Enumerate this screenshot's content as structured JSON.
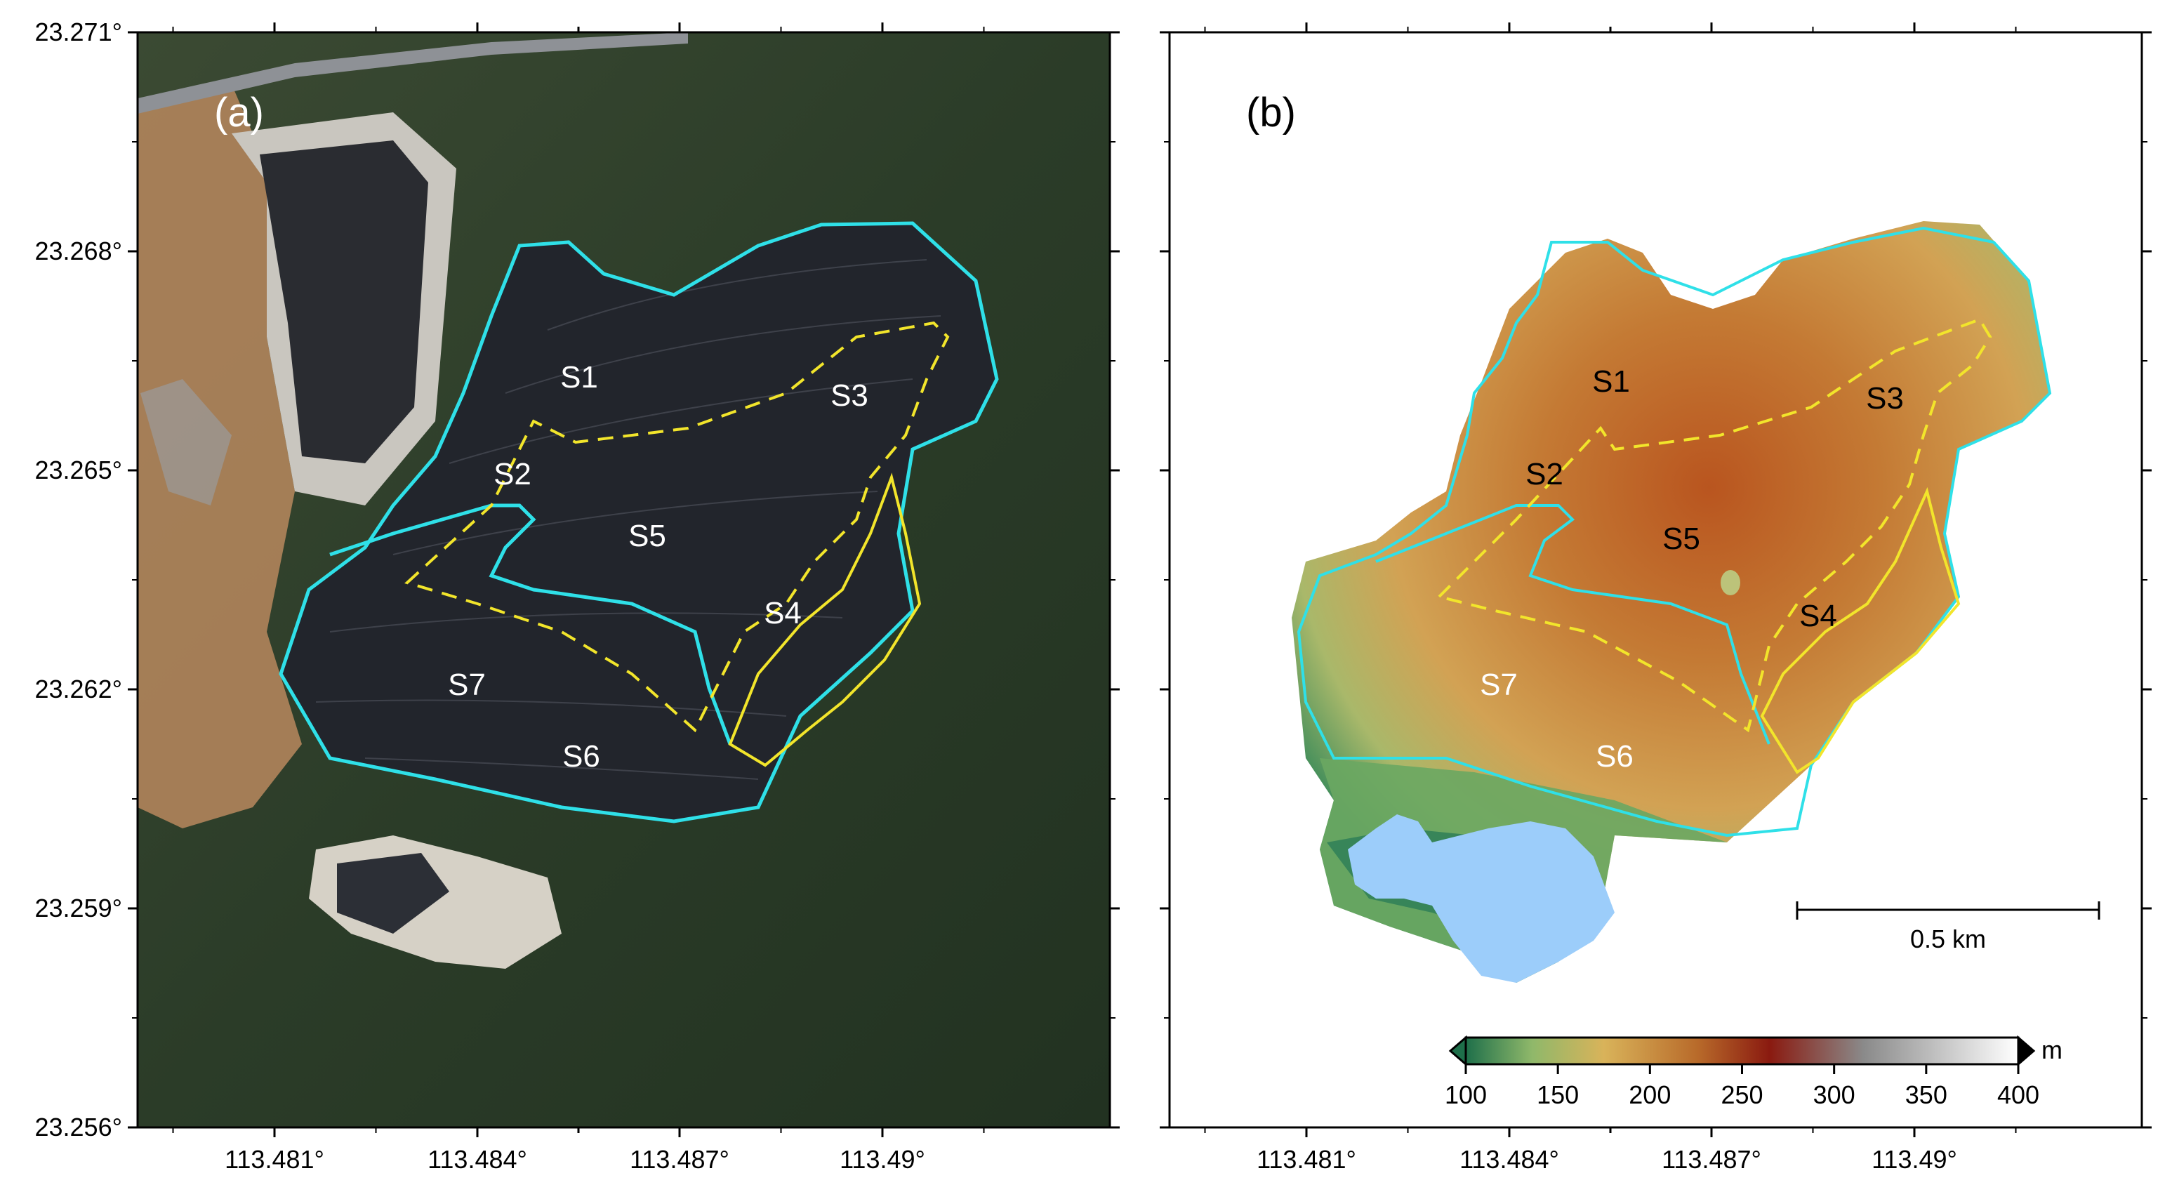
{
  "axes": {
    "lat_ticks": [
      "23.271°",
      "23.268°",
      "23.265°",
      "23.262°",
      "23.259°",
      "23.256°"
    ],
    "lon_ticks": [
      "113.481°",
      "113.484°",
      "113.487°",
      "113.49°"
    ]
  },
  "panel_a": {
    "label": "(a)",
    "zones": [
      "S1",
      "S2",
      "S3",
      "S4",
      "S5",
      "S6",
      "S7"
    ]
  },
  "panel_b": {
    "label": "(b)",
    "zones": [
      "S1",
      "S2",
      "S3",
      "S4",
      "S5",
      "S6",
      "S7"
    ],
    "scalebar": "0.5 km",
    "colorbar": {
      "unit": "m",
      "min": 100,
      "max": 400,
      "ticks": [
        "100",
        "150",
        "200",
        "250",
        "300",
        "350",
        "400"
      ],
      "colors": [
        "#1e6f4a",
        "#8fb86a",
        "#d9b35a",
        "#b86a2a",
        "#8a1a10",
        "#8a8a8a",
        "#ffffff"
      ]
    }
  },
  "colors": {
    "landfill_outline": "#2fe0e8",
    "zone_dashed": "#f2e52b",
    "zone_solid": "#f2e52b",
    "water": "#9ccdfa"
  }
}
